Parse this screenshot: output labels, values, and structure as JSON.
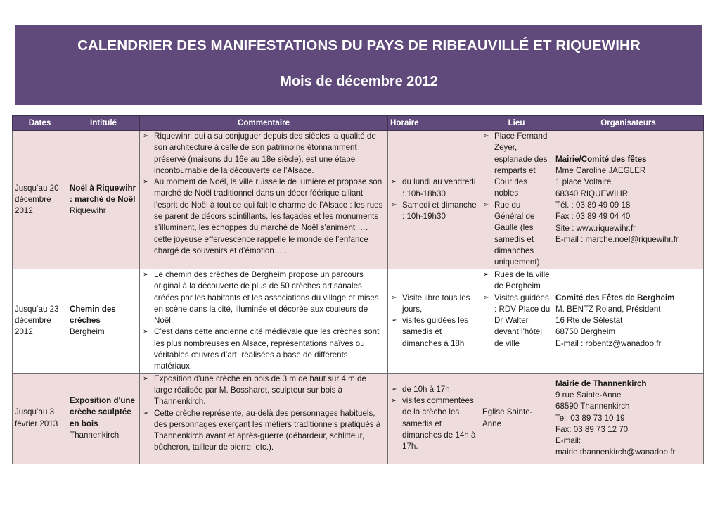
{
  "header": {
    "title": "CALENDRIER DES MANIFESTATIONS DU PAYS DE RIBEAUVILLÉ ET RIQUEWIHR",
    "subtitle": "Mois de décembre 2012"
  },
  "table": {
    "columns": [
      "Dates",
      "Intitulé",
      "Commentaire",
      "Horaire",
      "Lieu",
      "Organisateurs"
    ],
    "rows": [
      {
        "date": "Jusqu’au 20 décembre 2012",
        "title_bold": "Noël à Riquewihr : marché de Noël",
        "title_place": "Riquewihr",
        "comments": [
          "Riquewihr, qui a su conjuguer depuis des siècles la qualité de son architecture à celle de son patrimoine étonnamment préservé (maisons du 16e au 18e siècle), est une étape incontournable de la découverte de l’Alsace.",
          "Au moment de Noël, la ville ruisselle de lumière et propose son marché de Noël traditionnel dans un décor féérique alliant l’esprit de Noël à tout ce qui fait le charme de l’Alsace : les rues se parent de décors scintillants, les façades et les monuments s’illuminent, les échoppes du marché de Noël s’animent …. cette joyeuse effervescence rappelle le monde de l’enfance chargé de souvenirs et d’émotion …."
        ],
        "schedule": [
          "du lundi au vendredi : 10h-18h30",
          "Samedi et dimanche : 10h-19h30"
        ],
        "places": [
          "Place Fernand Zeyer, esplanade des remparts et Cour des nobles",
          "Rue du Général de Gaulle (les samedis et dimanches uniquement)"
        ],
        "org_name": "Mairie/Comité des fêtes",
        "org_lines": [
          "Mme Caroline JAEGLER",
          "1 place Voltaire",
          "68340 RIQUEWIHR",
          "Tél. : 03 89 49 09 18",
          "Fax : 03 89 49 04 40",
          "Site : www.riquewihr.fr",
          "E-mail : marche.noel@riquewihr.fr"
        ]
      },
      {
        "date": "Jusqu’au 23 décembre 2012",
        "title_bold": "Chemin des crèches",
        "title_place": "Bergheim",
        "comments": [
          "Le chemin des crèches de Bergheim propose un parcours original à la découverte de plus de 50 crèches artisanales créées par les habitants et les associations du village et mises en scène dans la cité, illuminée et décorée aux couleurs de Noël.",
          "C’est dans cette ancienne cité médiévale que les crèches sont les plus nombreuses en Alsace, représentations naïves ou véritables œuvres d’art, réalisées à base de différents matériaux."
        ],
        "schedule": [
          "Visite libre tous les jours,",
          "visites guidées les samedis et dimanches à 18h"
        ],
        "places": [
          "Rues de la ville de Bergheim",
          "Visites guidées : RDV Place du Dr Walter, devant l'hôtel de ville"
        ],
        "org_name": "Comité des Fêtes de Bergheim",
        "org_lines": [
          "M. BENTZ Roland, Président",
          "16 Rte de Sélestat",
          "68750 Bergheim",
          "E-mail : robentz@wanadoo.fr"
        ]
      },
      {
        "date": "Jusqu’au 3 février 2013",
        "title_bold": "Exposition d'une crèche sculptée en bois",
        "title_place": "Thannenkirch",
        "comments": [
          "Exposition d'une crèche en bois de 3 m de haut sur 4 m de large réalisée par M. Bosshardt, sculpteur sur bois à Thannenkirch.",
          "Cette crèche représente, au-delà des personnages habituels, des personnages exerçant les métiers traditionnels pratiqués à Thannenkirch avant et après-guerre (débardeur, schlitteur, bûcheron, tailleur de pierre, etc.)."
        ],
        "schedule": [
          "de 10h à 17h",
          "visites commentées de la crèche les samedis et dimanches de 14h à 17h."
        ],
        "place_text": "Eglise Sainte-Anne",
        "org_name": "Mairie de Thannenkirch",
        "org_lines": [
          "9 rue Sainte-Anne",
          "68590 Thannenkirch",
          "Tel: 03 89 73 10 19",
          "Fax: 03 89 73 12 70",
          "E-mail:",
          "mairie.thannenkirch@wanadoo.fr"
        ]
      }
    ]
  }
}
